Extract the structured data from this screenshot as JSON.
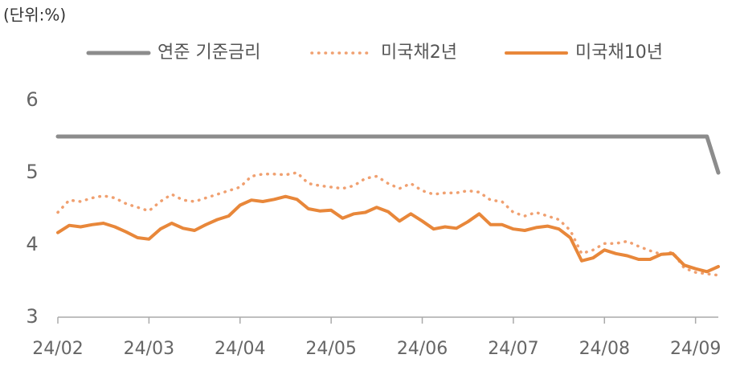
{
  "chart_data": {
    "type": "line",
    "unit_label": "(단위:%)",
    "legend": "top",
    "categories": [
      "24/02",
      null,
      null,
      null,
      null,
      null,
      null,
      null,
      "24/03",
      null,
      null,
      null,
      null,
      null,
      null,
      null,
      "24/04",
      null,
      null,
      null,
      null,
      null,
      null,
      null,
      "24/05",
      null,
      null,
      null,
      null,
      null,
      null,
      null,
      "24/06",
      null,
      null,
      null,
      null,
      null,
      null,
      null,
      "24/07",
      null,
      null,
      null,
      null,
      null,
      null,
      null,
      "24/08",
      null,
      null,
      null,
      null,
      null,
      null,
      null,
      "24/09",
      null,
      null
    ],
    "ylim": [
      3,
      6
    ],
    "yticks": [
      3,
      4,
      5,
      6
    ],
    "series": [
      {
        "name": "연준 기준금리",
        "color": "#8c8c8c",
        "style": "solid",
        "values": [
          5.5,
          5.5,
          5.5,
          5.5,
          5.5,
          5.5,
          5.5,
          5.5,
          5.5,
          5.5,
          5.5,
          5.5,
          5.5,
          5.5,
          5.5,
          5.5,
          5.5,
          5.5,
          5.5,
          5.5,
          5.5,
          5.5,
          5.5,
          5.5,
          5.5,
          5.5,
          5.5,
          5.5,
          5.5,
          5.5,
          5.5,
          5.5,
          5.5,
          5.5,
          5.5,
          5.5,
          5.5,
          5.5,
          5.5,
          5.5,
          5.5,
          5.5,
          5.5,
          5.5,
          5.5,
          5.5,
          5.5,
          5.5,
          5.5,
          5.5,
          5.5,
          5.5,
          5.5,
          5.5,
          5.5,
          5.5,
          5.5,
          5.5,
          5.0
        ]
      },
      {
        "name": "미국채2년",
        "color": "#f0a070",
        "style": "dotted",
        "values": [
          4.45,
          4.62,
          4.6,
          4.65,
          4.68,
          4.65,
          4.57,
          4.52,
          4.47,
          4.6,
          4.7,
          4.62,
          4.6,
          4.65,
          4.7,
          4.75,
          4.8,
          4.95,
          4.98,
          4.98,
          4.97,
          5.0,
          4.85,
          4.82,
          4.8,
          4.78,
          4.82,
          4.92,
          4.95,
          4.85,
          4.78,
          4.85,
          4.75,
          4.7,
          4.72,
          4.72,
          4.75,
          4.73,
          4.62,
          4.6,
          4.45,
          4.4,
          4.45,
          4.4,
          4.35,
          4.2,
          3.88,
          3.93,
          4.02,
          4.02,
          4.05,
          3.98,
          3.92,
          3.87,
          3.9,
          3.68,
          3.62,
          3.6,
          3.58
        ]
      },
      {
        "name": "미국채10년",
        "color": "#e8873a",
        "style": "solid",
        "values": [
          4.17,
          4.27,
          4.25,
          4.28,
          4.3,
          4.25,
          4.18,
          4.1,
          4.08,
          4.22,
          4.3,
          4.23,
          4.2,
          4.28,
          4.35,
          4.4,
          4.55,
          4.62,
          4.6,
          4.63,
          4.67,
          4.63,
          4.5,
          4.47,
          4.48,
          4.37,
          4.43,
          4.45,
          4.52,
          4.46,
          4.33,
          4.43,
          4.33,
          4.22,
          4.25,
          4.23,
          4.32,
          4.43,
          4.28,
          4.28,
          4.22,
          4.2,
          4.24,
          4.26,
          4.22,
          4.1,
          3.78,
          3.82,
          3.93,
          3.88,
          3.85,
          3.8,
          3.8,
          3.87,
          3.88,
          3.72,
          3.67,
          3.63,
          3.7
        ]
      }
    ]
  }
}
